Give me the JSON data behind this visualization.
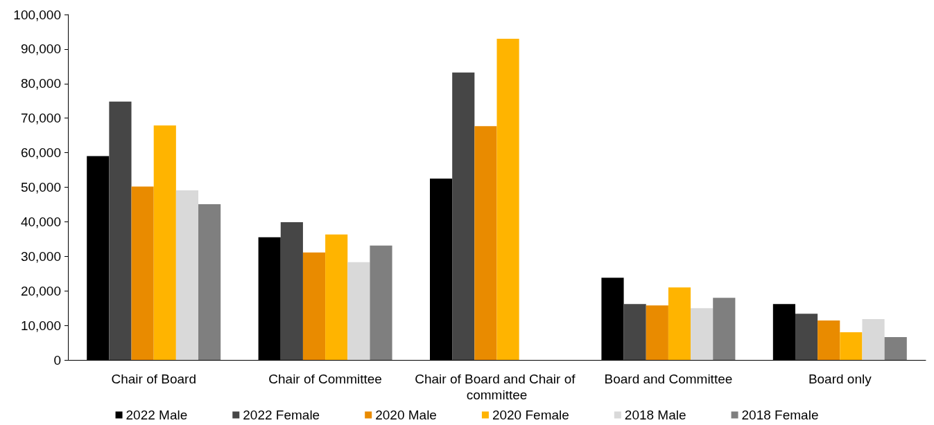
{
  "chart_data": {
    "type": "bar",
    "categories": [
      "Chair of Board",
      "Chair of Committee",
      "Chair of Board and Chair of committee",
      "Board and Committee",
      "Board only"
    ],
    "series": [
      {
        "name": "2022 Male",
        "color": "#000000",
        "values": [
          59000,
          35500,
          52500,
          23800,
          16200
        ]
      },
      {
        "name": "2022 Female",
        "color": "#464646",
        "values": [
          74800,
          39900,
          83200,
          16200,
          13400
        ]
      },
      {
        "name": "2020 Male",
        "color": "#e98b00",
        "values": [
          50200,
          31100,
          67700,
          15800,
          11400
        ]
      },
      {
        "name": "2020 Female",
        "color": "#ffb400",
        "values": [
          67900,
          36300,
          93000,
          21000,
          8000
        ]
      },
      {
        "name": "2018 Male",
        "color": "#d9d9d9",
        "values": [
          49100,
          28300,
          null,
          15000,
          11800
        ]
      },
      {
        "name": "2018 Female",
        "color": "#7f7f7f",
        "values": [
          45100,
          33100,
          null,
          18000,
          6600
        ]
      }
    ],
    "ylim": [
      0,
      100000
    ],
    "yticks": [
      {
        "value": 0,
        "label": "0"
      },
      {
        "value": 10000,
        "label": "10,000"
      },
      {
        "value": 20000,
        "label": "20,000"
      },
      {
        "value": 30000,
        "label": "30,000"
      },
      {
        "value": 40000,
        "label": "40,000"
      },
      {
        "value": 50000,
        "label": "50,000"
      },
      {
        "value": 60000,
        "label": "60,000"
      },
      {
        "value": 70000,
        "label": "70,000"
      },
      {
        "value": 80000,
        "label": "80,000"
      },
      {
        "value": 90000,
        "label": "90,000"
      },
      {
        "value": 100000,
        "label": "100,000"
      }
    ],
    "grid": false,
    "legend": "bottom"
  }
}
